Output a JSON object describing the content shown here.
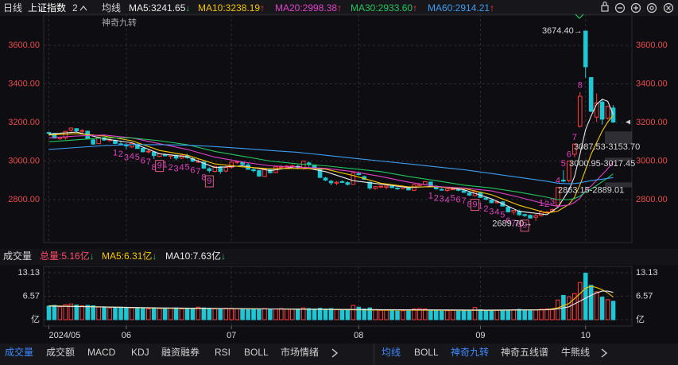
{
  "header": {
    "period": "日线",
    "symbol": "上证指数",
    "count": "2",
    "ma_title": "均线",
    "indicator": "神奇九转"
  },
  "chart_data": [
    {
      "type": "candlestick",
      "up_color": "#ff3b3b",
      "down_color": "#1fc7d4",
      "xlim": [
        -0.5,
        102.5
      ],
      "xticks": [
        {
          "value": 0,
          "label": "2024/05"
        },
        {
          "value": 14,
          "label": "06"
        },
        {
          "value": 33,
          "label": "07"
        },
        {
          "value": 56,
          "label": "08"
        },
        {
          "value": 78,
          "label": "09"
        },
        {
          "value": 97,
          "label": "10"
        }
      ],
      "ylim": [
        2577,
        3753
      ],
      "yticks": [
        {
          "value": 2800,
          "label": "2800.00"
        },
        {
          "value": 3000,
          "label": "3000.00"
        },
        {
          "value": 3200,
          "label": "3200.00"
        },
        {
          "value": 3400,
          "label": "3400.00"
        },
        {
          "value": 3600,
          "label": "3600.00"
        }
      ],
      "grid": true,
      "candles": [
        [
          3148,
          3152,
          3133,
          3145
        ],
        [
          3143,
          3146,
          3117,
          3119
        ],
        [
          3115,
          3127,
          3110,
          3122
        ],
        [
          3120,
          3155,
          3111,
          3154
        ],
        [
          3160,
          3174,
          3151,
          3171
        ],
        [
          3168,
          3170,
          3148,
          3157
        ],
        [
          3155,
          3165,
          3147,
          3158
        ],
        [
          3155,
          3158,
          3114,
          3116
        ],
        [
          3110,
          3112,
          3084,
          3088
        ],
        [
          3090,
          3126,
          3088,
          3125
        ],
        [
          3122,
          3126,
          3104,
          3109
        ],
        [
          3106,
          3121,
          3101,
          3111
        ],
        [
          3107,
          3111,
          3087,
          3091
        ],
        [
          3089,
          3104,
          3081,
          3087
        ],
        [
          3085,
          3093,
          3061,
          3078
        ],
        [
          3073,
          3092,
          3067,
          3091
        ],
        [
          3087,
          3094,
          3064,
          3065
        ],
        [
          3066,
          3070,
          3045,
          3048
        ],
        [
          3050,
          3059,
          3038,
          3051
        ],
        [
          3047,
          3049,
          3010,
          3028
        ],
        [
          3024,
          3039,
          3020,
          3037
        ],
        [
          3031,
          3039,
          3025,
          3028
        ],
        [
          3025,
          3035,
          3010,
          3032
        ],
        [
          3030,
          3031,
          3004,
          3015
        ],
        [
          3015,
          3035,
          3010,
          3030
        ],
        [
          3027,
          3038,
          3012,
          3018
        ],
        [
          3012,
          3022,
          2995,
          2999
        ],
        [
          2998,
          3010,
          2990,
          2998
        ],
        [
          2995,
          2997,
          2958,
          2963
        ],
        [
          2960,
          2968,
          2940,
          2950
        ],
        [
          2946,
          2975,
          2940,
          2972
        ],
        [
          2970,
          2973,
          2933,
          2946
        ],
        [
          2948,
          2975,
          2941,
          2967
        ],
        [
          2967,
          2997,
          2961,
          2994
        ],
        [
          2993,
          3000,
          2985,
          2997
        ],
        [
          2994,
          2998,
          2978,
          2982
        ],
        [
          2980,
          2990,
          2955,
          2957
        ],
        [
          2955,
          2966,
          2941,
          2950
        ],
        [
          2950,
          2953,
          2917,
          2922
        ],
        [
          2920,
          2961,
          2918,
          2959
        ],
        [
          2955,
          2960,
          2935,
          2939
        ],
        [
          2940,
          2973,
          2938,
          2970
        ],
        [
          2969,
          2980,
          2962,
          2971
        ],
        [
          2966,
          2978,
          2960,
          2974
        ],
        [
          2971,
          2982,
          2965,
          2976
        ],
        [
          2973,
          2980,
          2958,
          2962
        ],
        [
          2960,
          3002,
          2955,
          3000
        ],
        [
          2990,
          2997,
          2970,
          2982
        ],
        [
          2980,
          2981,
          2962,
          2964
        ],
        [
          2962,
          2966,
          2910,
          2915
        ],
        [
          2912,
          2917,
          2896,
          2901
        ],
        [
          2895,
          2903,
          2874,
          2887
        ],
        [
          2885,
          2897,
          2875,
          2890
        ],
        [
          2893,
          2900,
          2886,
          2891
        ],
        [
          2888,
          2895,
          2873,
          2879
        ],
        [
          2879,
          2942,
          2878,
          2939
        ],
        [
          2934,
          2946,
          2925,
          2932
        ],
        [
          2919,
          2924,
          2902,
          2905
        ],
        [
          2890,
          2893,
          2851,
          2860
        ],
        [
          2858,
          2871,
          2852,
          2867
        ],
        [
          2865,
          2873,
          2860,
          2869
        ],
        [
          2864,
          2872,
          2853,
          2870
        ],
        [
          2868,
          2877,
          2860,
          2862
        ],
        [
          2860,
          2864,
          2850,
          2858
        ],
        [
          2857,
          2869,
          2852,
          2868
        ],
        [
          2866,
          2868,
          2848,
          2850
        ],
        [
          2848,
          2880,
          2844,
          2877
        ],
        [
          2873,
          2886,
          2869,
          2879
        ],
        [
          2877,
          2896,
          2873,
          2893
        ],
        [
          2891,
          2893,
          2864,
          2866
        ],
        [
          2862,
          2866,
          2851,
          2856
        ],
        [
          2853,
          2860,
          2846,
          2849
        ],
        [
          2847,
          2858,
          2840,
          2855
        ],
        [
          2855,
          2864,
          2850,
          2855
        ],
        [
          2853,
          2860,
          2843,
          2848
        ],
        [
          2846,
          2852,
          2836,
          2837
        ],
        [
          2835,
          2838,
          2819,
          2823
        ],
        [
          2820,
          2850,
          2818,
          2842
        ],
        [
          2837,
          2839,
          2810,
          2811
        ],
        [
          2808,
          2812,
          2795,
          2802
        ],
        [
          2798,
          2800,
          2780,
          2784
        ],
        [
          2784,
          2795,
          2778,
          2789
        ],
        [
          2788,
          2792,
          2765,
          2766
        ],
        [
          2760,
          2763,
          2733,
          2736
        ],
        [
          2735,
          2745,
          2721,
          2744
        ],
        [
          2740,
          2748,
          2716,
          2721
        ],
        [
          2722,
          2727,
          2710,
          2717
        ],
        [
          2718,
          2722,
          2704,
          2704
        ],
        [
          2708,
          2724,
          2689.7,
          2717
        ],
        [
          2717,
          2745,
          2712,
          2736
        ],
        [
          2733,
          2741,
          2729,
          2736
        ],
        [
          2739,
          2754,
          2733,
          2748
        ],
        [
          2770,
          2863,
          2768,
          2863
        ],
        [
          2901,
          2952,
          2889,
          2896
        ],
        [
          2899,
          3000,
          2889,
          3000
        ],
        [
          3035,
          3088,
          3020,
          3088
        ],
        [
          3180,
          3358,
          3174,
          3336
        ],
        [
          3674.4,
          3674.4,
          3432,
          3489
        ],
        [
          3433,
          3436,
          3254,
          3258
        ],
        [
          3228,
          3351,
          3204,
          3301
        ],
        [
          3306,
          3324,
          3189,
          3217
        ],
        [
          3222,
          3285,
          3215,
          3284
        ],
        [
          3275,
          3290,
          3198,
          3202
        ]
      ],
      "ma_x": [
        0,
        5,
        10,
        15,
        20,
        25,
        30,
        35,
        40,
        45,
        50,
        55,
        60,
        65,
        70,
        75,
        80,
        85,
        90,
        92,
        94,
        95,
        96,
        97,
        98,
        99,
        100,
        101,
        102
      ],
      "series": [
        {
          "label": "MA5:3241.65",
          "trend": "↓",
          "color": "#e8e8e8",
          "values": [
            3140,
            3150,
            3115,
            3095,
            3038,
            3022,
            2966,
            2975,
            2950,
            2972,
            2945,
            2898,
            2880,
            2862,
            2869,
            2851,
            2804,
            2739,
            2722,
            2760,
            2849,
            2919,
            3037,
            3162,
            3234,
            3294,
            3320,
            3310,
            3241.65
          ]
        },
        {
          "label": "MA10:3238.19",
          "trend": "↑",
          "color": "#f5c400",
          "values": [
            3135,
            3142,
            3130,
            3105,
            3055,
            3030,
            2985,
            2970,
            2960,
            2962,
            2958,
            2925,
            2885,
            2866,
            2866,
            2858,
            2825,
            2770,
            2730,
            2740,
            2775,
            2812,
            2878,
            2955,
            3035,
            3095,
            3155,
            3202,
            3238.19
          ]
        },
        {
          "label": "MA20:2998.38",
          "trend": "↑",
          "color": "#e040c8",
          "values": [
            3120,
            3130,
            3135,
            3120,
            3090,
            3060,
            3020,
            2995,
            2975,
            2968,
            2962,
            2945,
            2920,
            2890,
            2868,
            2860,
            2845,
            2812,
            2775,
            2765,
            2772,
            2785,
            2808,
            2847,
            2870,
            2900,
            2930,
            2960,
            2998.38
          ]
        },
        {
          "label": "MA30:2933.60",
          "trend": "↑",
          "color": "#22c55e",
          "values": [
            3100,
            3110,
            3120,
            3120,
            3105,
            3085,
            3050,
            3025,
            3000,
            2985,
            2975,
            2960,
            2945,
            2920,
            2898,
            2875,
            2860,
            2838,
            2812,
            2800,
            2800,
            2805,
            2818,
            2840,
            2855,
            2873,
            2893,
            2912,
            2933.6
          ]
        },
        {
          "label": "MA60:2914.21",
          "trend": "↑",
          "color": "#3b9cf0",
          "values": [
            3060,
            3070,
            3080,
            3085,
            3085,
            3082,
            3075,
            3065,
            3055,
            3045,
            3030,
            3015,
            3000,
            2985,
            2970,
            2955,
            2935,
            2915,
            2895,
            2885,
            2882,
            2883,
            2887,
            2893,
            2898,
            2902,
            2906,
            2910,
            2914.21
          ]
        }
      ],
      "gaps": [
        {
          "label": "3087.53-3153.70",
          "low": 3087.53,
          "high": 3153.7
        },
        {
          "label": "3000.95-3017.45",
          "low": 3000.95,
          "high": 3017.45
        },
        {
          "label": "2863.15-2889.01",
          "low": 2863.15,
          "high": 2889.01
        }
      ],
      "annotations": [
        {
          "text": "3674.40→",
          "value": 3674.4,
          "index": 97
        },
        {
          "text": "2689.70→",
          "value": 2689.7,
          "index": 88
        }
      ],
      "nine_turn": [
        {
          "start": 12,
          "direction": "down",
          "labels": [
            "1",
            "2",
            "3",
            "4",
            "5",
            "6",
            "7",
            "8",
            "9"
          ]
        },
        {
          "start": 21,
          "direction": "down",
          "labels": [
            "1",
            "2",
            "3",
            "4",
            "5",
            "6",
            "7",
            "8",
            "9"
          ]
        },
        {
          "start": 69,
          "direction": "down",
          "labels": [
            "1",
            "2",
            "3",
            "4",
            "5",
            "6",
            "7",
            "8",
            "9"
          ]
        },
        {
          "start": 78,
          "direction": "down",
          "labels": [
            "1",
            "2",
            "3",
            "4",
            "5",
            "6",
            "7",
            "8",
            "9"
          ]
        },
        {
          "start": 89,
          "direction": "up",
          "labels": [
            "1",
            "2",
            "3",
            "4",
            "5",
            "6",
            "7",
            "8"
          ]
        }
      ]
    },
    {
      "type": "bar",
      "title": "成交量",
      "summary": {
        "label": "总量:5.16亿",
        "trend": "↓"
      },
      "ylim": [
        0,
        13.13
      ],
      "yticks": [
        {
          "value": 0,
          "label": "亿"
        },
        6.57,
        13.13
      ],
      "values": [
        3.8,
        4.0,
        3.6,
        4.2,
        4.4,
        4.1,
        3.9,
        4.0,
        3.9,
        3.5,
        3.6,
        3.3,
        3.4,
        3.5,
        3.4,
        3.3,
        3.2,
        3.3,
        3.0,
        3.2,
        3.1,
        3.0,
        3.2,
        3.3,
        3.0,
        3.1,
        3.2,
        3.5,
        3.3,
        3.2,
        3.0,
        3.1,
        3.2,
        3.2,
        3.1,
        2.9,
        2.8,
        2.9,
        3.0,
        3.1,
        2.9,
        3.0,
        3.1,
        3.0,
        2.9,
        3.0,
        3.3,
        3.1,
        3.0,
        3.2,
        3.0,
        3.1,
        2.9,
        2.8,
        2.9,
        4.0,
        3.5,
        3.0,
        3.3,
        2.8,
        2.6,
        2.6,
        2.5,
        2.4,
        2.5,
        2.5,
        3.0,
        3.1,
        3.0,
        2.7,
        2.5,
        2.4,
        2.5,
        2.6,
        2.4,
        2.5,
        2.6,
        3.4,
        2.8,
        2.6,
        2.5,
        2.6,
        2.6,
        2.7,
        2.8,
        2.9,
        2.7,
        2.6,
        2.7,
        2.9,
        3.0,
        2.8,
        5.5,
        6.8,
        6.4,
        7.3,
        10.4,
        13.0,
        9.6,
        7.8,
        6.3,
        5.6,
        5.16
      ],
      "ma_x": [
        0,
        20,
        40,
        60,
        80,
        90,
        92,
        94,
        96,
        97,
        98,
        99,
        100,
        101,
        102
      ],
      "series": [
        {
          "label": "MA5:6.31亿",
          "trend": "↓",
          "color": "#f5c400",
          "values": [
            3.9,
            3.2,
            3.0,
            2.7,
            2.6,
            2.8,
            3.3,
            4.5,
            7.3,
            8.8,
            9.4,
            9.0,
            8.4,
            7.5,
            6.31
          ]
        },
        {
          "label": "MA10:7.63亿",
          "trend": "↓",
          "color": "#e8e8e8",
          "values": [
            3.8,
            3.3,
            3.0,
            2.8,
            2.7,
            2.75,
            3.0,
            3.6,
            5.2,
            6.0,
            6.8,
            7.5,
            8.0,
            8.0,
            7.63
          ]
        }
      ]
    }
  ],
  "tabs": {
    "left": {
      "items": [
        "成交量",
        "成交额",
        "MACD",
        "KDJ",
        "融资融券",
        "RSI",
        "BOLL",
        "市场情绪"
      ],
      "active": [
        0
      ]
    },
    "right": {
      "items": [
        "均线",
        "BOLL",
        "神奇九转",
        "神奇五线谱",
        "牛熊线"
      ],
      "active": [
        0,
        2
      ]
    }
  }
}
